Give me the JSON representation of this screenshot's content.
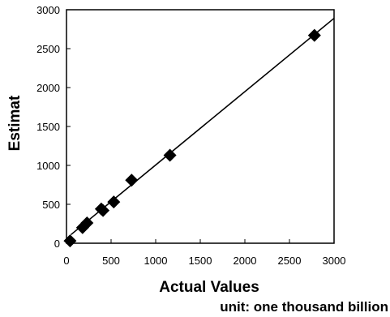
{
  "chart_data": {
    "type": "scatter",
    "xlabel": "Actual Values",
    "ylabel": "Estimat",
    "note": "unit: one thousand billion",
    "xlim": [
      0,
      3000
    ],
    "ylim": [
      0,
      3000
    ],
    "xticks": [
      "0",
      "500",
      "1000",
      "1500",
      "2000",
      "2500",
      "3000"
    ],
    "yticks": [
      "0",
      "500",
      "1000",
      "1500",
      "2000",
      "2500",
      "3000"
    ],
    "grid": false,
    "marker": "diamond",
    "marker_color": "#000000",
    "series": [
      {
        "x": [
          40,
          180,
          230,
          390,
          410,
          530,
          730,
          1160,
          2780
        ],
        "y": [
          30,
          200,
          260,
          440,
          420,
          530,
          810,
          1130,
          2670
        ]
      }
    ],
    "trendline": {
      "x": [
        50,
        3000
      ],
      "y": [
        110,
        2890
      ]
    }
  }
}
